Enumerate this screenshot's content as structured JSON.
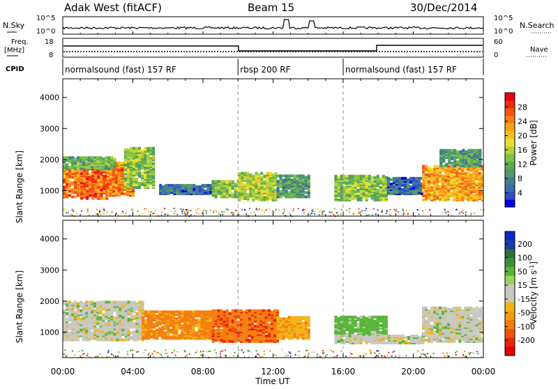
{
  "header": {
    "station": "Adak West (fitACF)",
    "beam": "Beam 15",
    "date": "30/Dec/2014"
  },
  "panel_labels": {
    "nsky": "N.Sky",
    "nsearch": "N.Search",
    "freq_line1": "Freq.",
    "freq_line2": "[MHz]",
    "nave": "Nave",
    "cpid": "CPID"
  },
  "noise_axis": {
    "ticks": [
      "10^5",
      "10^0"
    ]
  },
  "freq_axis": {
    "left_ticks": [
      "18",
      "8"
    ],
    "right_ticks": [
      "60",
      "0"
    ]
  },
  "cpid_segments": [
    {
      "label": "normalsound (fast) 157 RF",
      "start_hr": 0,
      "end_hr": 10
    },
    {
      "label": "rbsp 200 RF",
      "start_hr": 10,
      "end_hr": 16
    },
    {
      "label": "normalsound (fast) 157 RF",
      "start_hr": 16,
      "end_hr": 24
    }
  ],
  "colorbars": {
    "power": {
      "label": "Power [dB]",
      "ticks": [
        "28",
        "24",
        "20",
        "16",
        "12",
        "8",
        "4"
      ],
      "range": [
        0,
        32
      ],
      "colors": [
        "#0000e6",
        "#2b4fbf",
        "#3a6aa8",
        "#467f8c",
        "#4f9a6a",
        "#59ab4d",
        "#7ec243",
        "#b5d23a",
        "#eade2e",
        "#f6c21f",
        "#f9a11a",
        "#fa7b16",
        "#f75313",
        "#f02a10",
        "#e8000d"
      ]
    },
    "velocity": {
      "label": "Velocity [m s",
      "label_sup": "-1",
      "label_end": "]",
      "ticks": [
        "200",
        "100",
        "50",
        "15",
        "-15",
        "-50",
        "-100",
        "-200"
      ],
      "colors": [
        "#0a28c8",
        "#1f3aa6",
        "#2d6e3f",
        "#3c8f37",
        "#59b53a",
        "#9ed35c",
        "#c8c8c0",
        "#c8c8c0",
        "#f2b316",
        "#f59a12",
        "#f47e0e",
        "#f0540b",
        "#ea2407",
        "#e60000"
      ]
    }
  },
  "chart_data": {
    "type": "heatmap",
    "title": "Adak West (fitACF)",
    "xlabel": "Time UT",
    "ylabel": "Slant Range [km]",
    "x_ticks": [
      "00:00",
      "04:00",
      "08:00",
      "12:00",
      "16:00",
      "20:00",
      "00:00"
    ],
    "xlim_hours": [
      0,
      24
    ],
    "y_ticks": [
      1000,
      2000,
      3000,
      4000
    ],
    "ylim_km": [
      180,
      4600
    ],
    "grid": false,
    "power_regions_db": [
      {
        "t0": 0.0,
        "t1": 1.0,
        "r0": 800,
        "r1": 1700,
        "value": 24
      },
      {
        "t0": 1.0,
        "t1": 2.5,
        "r0": 750,
        "r1": 1700,
        "value": 26
      },
      {
        "t0": 2.5,
        "t1": 4.0,
        "r0": 850,
        "r1": 1900,
        "value": 24
      },
      {
        "t0": 0.0,
        "t1": 3.0,
        "r0": 1700,
        "r1": 2100,
        "value": 12
      },
      {
        "t0": 3.5,
        "t1": 5.2,
        "r0": 1100,
        "r1": 2400,
        "value": 14
      },
      {
        "t0": 5.5,
        "t1": 8.5,
        "r0": 900,
        "r1": 1200,
        "value": 6
      },
      {
        "t0": 8.5,
        "t1": 10.0,
        "r0": 800,
        "r1": 1300,
        "value": 14
      },
      {
        "t0": 10.0,
        "t1": 12.2,
        "r0": 700,
        "r1": 1600,
        "value": 16
      },
      {
        "t0": 12.2,
        "t1": 14.0,
        "r0": 800,
        "r1": 1500,
        "value": 10
      },
      {
        "t0": 15.5,
        "t1": 18.5,
        "r0": 700,
        "r1": 1500,
        "value": 14
      },
      {
        "t0": 18.5,
        "t1": 20.5,
        "r0": 900,
        "r1": 1400,
        "value": 6
      },
      {
        "t0": 20.5,
        "t1": 23.9,
        "r0": 700,
        "r1": 1800,
        "value": 22
      },
      {
        "t0": 21.5,
        "t1": 23.9,
        "r0": 1800,
        "r1": 2300,
        "value": 10
      }
    ],
    "velocity_regions_mps": [
      {
        "t0": 0.0,
        "t1": 4.5,
        "r0": 750,
        "r1": 2000,
        "value": 0
      },
      {
        "t0": 4.5,
        "t1": 8.5,
        "r0": 800,
        "r1": 1700,
        "value": -60
      },
      {
        "t0": 8.5,
        "t1": 12.2,
        "r0": 700,
        "r1": 1700,
        "value": -90
      },
      {
        "t0": 12.2,
        "t1": 14.0,
        "r0": 800,
        "r1": 1500,
        "value": -40
      },
      {
        "t0": 15.5,
        "t1": 18.5,
        "r0": 900,
        "r1": 1500,
        "value": 30
      },
      {
        "t0": 15.5,
        "t1": 20.5,
        "r0": 650,
        "r1": 900,
        "value": 0
      },
      {
        "t0": 20.5,
        "t1": 23.9,
        "r0": 700,
        "r1": 1800,
        "value": 0
      }
    ]
  }
}
